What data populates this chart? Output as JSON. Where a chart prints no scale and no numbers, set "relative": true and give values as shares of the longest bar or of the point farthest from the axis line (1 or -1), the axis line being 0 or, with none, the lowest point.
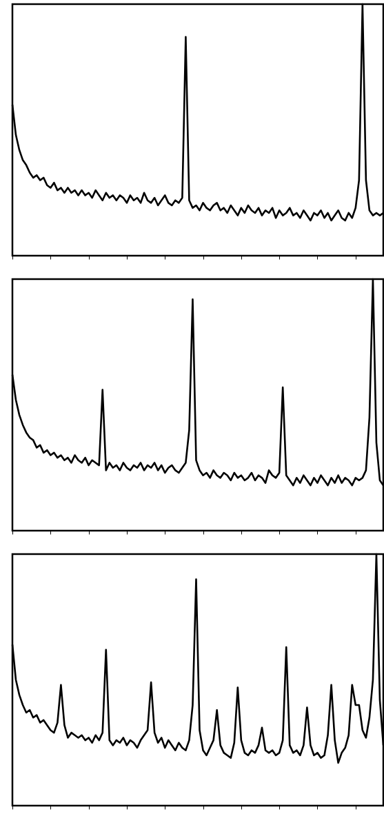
{
  "chart_data": [
    {
      "type": "line",
      "relative": true,
      "tick_labels": false,
      "categories": [
        null,
        null,
        null,
        null,
        null,
        null,
        null,
        null,
        null,
        null,
        null,
        null,
        null,
        null,
        null,
        null,
        null,
        null,
        null,
        null,
        null,
        null,
        null,
        null,
        null,
        null,
        null,
        null,
        null,
        null,
        null,
        null,
        null,
        null,
        null,
        null,
        null,
        null,
        null,
        null,
        null,
        null,
        null,
        null,
        null,
        null,
        null,
        null,
        null,
        null,
        null,
        null,
        null,
        null,
        null,
        null,
        null,
        null,
        null,
        null,
        null,
        null,
        null,
        null,
        null,
        null,
        null,
        null,
        null,
        null,
        null,
        null,
        null,
        null,
        null,
        null,
        null,
        null,
        null,
        null,
        null,
        null,
        null,
        null,
        null,
        null,
        null,
        null,
        null,
        null,
        null,
        null,
        null,
        null,
        null,
        null,
        null,
        null,
        null,
        null,
        null,
        null,
        null,
        null,
        null,
        null,
        null,
        null
      ],
      "series": [
        {
          "color": "#000000",
          "values": [
            0.6,
            0.48,
            0.42,
            0.38,
            0.36,
            0.33,
            0.31,
            0.32,
            0.3,
            0.31,
            0.28,
            0.27,
            0.29,
            0.26,
            0.27,
            0.25,
            0.27,
            0.25,
            0.26,
            0.24,
            0.26,
            0.24,
            0.25,
            0.23,
            0.26,
            0.24,
            0.22,
            0.25,
            0.23,
            0.24,
            0.22,
            0.24,
            0.23,
            0.21,
            0.24,
            0.22,
            0.23,
            0.21,
            0.25,
            0.22,
            0.21,
            0.23,
            0.2,
            0.22,
            0.24,
            0.21,
            0.2,
            0.22,
            0.21,
            0.23,
            0.87,
            0.22,
            0.19,
            0.2,
            0.18,
            0.21,
            0.19,
            0.18,
            0.2,
            0.21,
            0.18,
            0.19,
            0.17,
            0.2,
            0.18,
            0.16,
            0.19,
            0.17,
            0.2,
            0.18,
            0.17,
            0.19,
            0.16,
            0.18,
            0.17,
            0.19,
            0.15,
            0.18,
            0.16,
            0.17,
            0.19,
            0.16,
            0.17,
            0.15,
            0.18,
            0.16,
            0.14,
            0.17,
            0.16,
            0.18,
            0.15,
            0.17,
            0.14,
            0.16,
            0.18,
            0.15,
            0.14,
            0.17,
            0.15,
            0.19,
            0.3,
            1.0,
            0.3,
            0.18,
            0.16,
            0.17,
            0.16,
            0.17
          ]
        }
      ]
    },
    {
      "type": "line",
      "relative": true,
      "tick_labels": false,
      "categories": [
        null,
        null,
        null,
        null,
        null,
        null,
        null,
        null,
        null,
        null,
        null,
        null,
        null,
        null,
        null,
        null,
        null,
        null,
        null,
        null,
        null,
        null,
        null,
        null,
        null,
        null,
        null,
        null,
        null,
        null,
        null,
        null,
        null,
        null,
        null,
        null,
        null,
        null,
        null,
        null,
        null,
        null,
        null,
        null,
        null,
        null,
        null,
        null,
        null,
        null,
        null,
        null,
        null,
        null,
        null,
        null,
        null,
        null,
        null,
        null,
        null,
        null,
        null,
        null,
        null,
        null,
        null,
        null,
        null,
        null,
        null,
        null,
        null,
        null,
        null,
        null,
        null,
        null,
        null,
        null,
        null,
        null,
        null,
        null,
        null,
        null,
        null,
        null,
        null,
        null,
        null,
        null,
        null,
        null,
        null,
        null,
        null,
        null,
        null,
        null,
        null,
        null,
        null,
        null,
        null,
        null,
        null,
        null
      ],
      "series": [
        {
          "color": "#000000",
          "values": [
            0.62,
            0.52,
            0.46,
            0.42,
            0.39,
            0.37,
            0.36,
            0.33,
            0.34,
            0.31,
            0.32,
            0.3,
            0.31,
            0.29,
            0.3,
            0.28,
            0.29,
            0.27,
            0.3,
            0.28,
            0.27,
            0.29,
            0.26,
            0.28,
            0.27,
            0.26,
            0.56,
            0.24,
            0.27,
            0.25,
            0.26,
            0.24,
            0.27,
            0.25,
            0.24,
            0.26,
            0.25,
            0.27,
            0.24,
            0.26,
            0.25,
            0.27,
            0.24,
            0.26,
            0.23,
            0.25,
            0.26,
            0.24,
            0.23,
            0.25,
            0.27,
            0.4,
            0.92,
            0.28,
            0.24,
            0.22,
            0.23,
            0.21,
            0.24,
            0.22,
            0.21,
            0.23,
            0.22,
            0.2,
            0.23,
            0.21,
            0.22,
            0.2,
            0.21,
            0.23,
            0.2,
            0.22,
            0.21,
            0.19,
            0.24,
            0.22,
            0.21,
            0.23,
            0.57,
            0.22,
            0.2,
            0.18,
            0.21,
            0.19,
            0.22,
            0.2,
            0.18,
            0.21,
            0.19,
            0.22,
            0.2,
            0.18,
            0.21,
            0.19,
            0.22,
            0.19,
            0.21,
            0.2,
            0.18,
            0.21,
            0.2,
            0.21,
            0.24,
            0.45,
            1.0,
            0.35,
            0.2,
            0.18
          ]
        }
      ]
    },
    {
      "type": "line",
      "relative": true,
      "tick_labels": false,
      "categories": [
        null,
        null,
        null,
        null,
        null,
        null,
        null,
        null,
        null,
        null,
        null,
        null,
        null,
        null,
        null,
        null,
        null,
        null,
        null,
        null,
        null,
        null,
        null,
        null,
        null,
        null,
        null,
        null,
        null,
        null,
        null,
        null,
        null,
        null,
        null,
        null,
        null,
        null,
        null,
        null,
        null,
        null,
        null,
        null,
        null,
        null,
        null,
        null,
        null,
        null,
        null,
        null,
        null,
        null,
        null,
        null,
        null,
        null,
        null,
        null,
        null,
        null,
        null,
        null,
        null,
        null,
        null,
        null,
        null,
        null,
        null,
        null,
        null,
        null,
        null,
        null,
        null,
        null,
        null,
        null,
        null,
        null,
        null,
        null,
        null,
        null,
        null,
        null,
        null,
        null,
        null,
        null,
        null,
        null,
        null,
        null,
        null,
        null,
        null,
        null,
        null,
        null,
        null,
        null,
        null,
        null,
        null,
        null
      ],
      "series": [
        {
          "color": "#000000",
          "values": [
            0.64,
            0.5,
            0.44,
            0.4,
            0.37,
            0.38,
            0.35,
            0.36,
            0.33,
            0.34,
            0.32,
            0.3,
            0.29,
            0.33,
            0.48,
            0.32,
            0.27,
            0.29,
            0.28,
            0.27,
            0.28,
            0.26,
            0.27,
            0.25,
            0.28,
            0.26,
            0.29,
            0.62,
            0.26,
            0.24,
            0.26,
            0.25,
            0.27,
            0.24,
            0.26,
            0.25,
            0.23,
            0.26,
            0.28,
            0.3,
            0.49,
            0.29,
            0.25,
            0.27,
            0.23,
            0.26,
            0.24,
            0.22,
            0.25,
            0.23,
            0.22,
            0.26,
            0.4,
            0.9,
            0.3,
            0.22,
            0.2,
            0.23,
            0.26,
            0.38,
            0.24,
            0.21,
            0.2,
            0.19,
            0.25,
            0.47,
            0.26,
            0.21,
            0.2,
            0.22,
            0.21,
            0.24,
            0.31,
            0.22,
            0.21,
            0.22,
            0.2,
            0.21,
            0.26,
            0.63,
            0.24,
            0.21,
            0.22,
            0.2,
            0.24,
            0.39,
            0.24,
            0.2,
            0.21,
            0.19,
            0.2,
            0.28,
            0.48,
            0.26,
            0.17,
            0.21,
            0.23,
            0.28,
            0.48,
            0.4,
            0.4,
            0.3,
            0.27,
            0.35,
            0.5,
            1.0,
            0.42,
            0.24
          ]
        }
      ]
    }
  ]
}
